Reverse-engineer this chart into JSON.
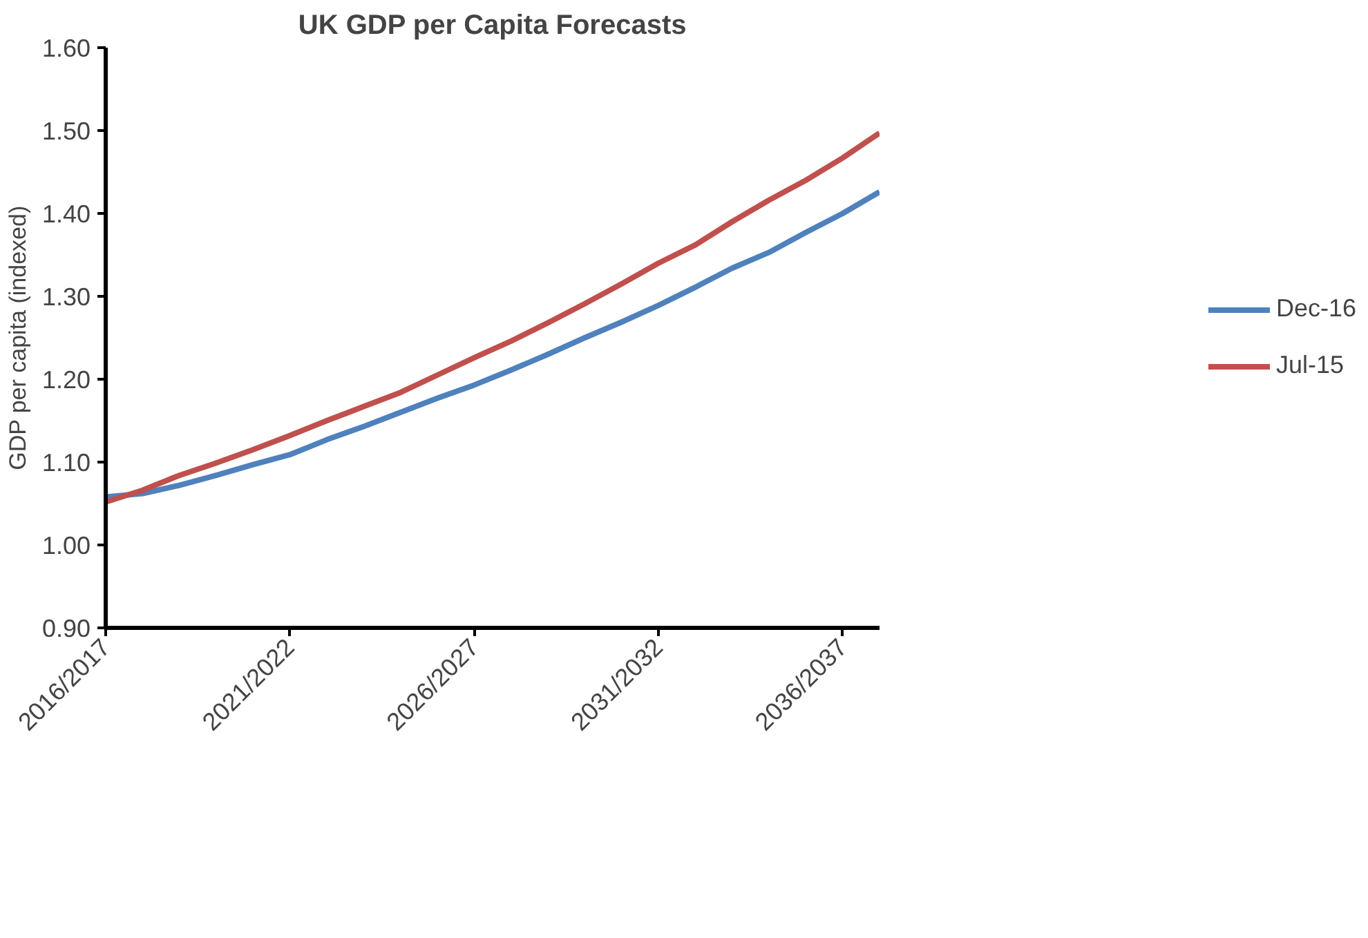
{
  "chart_data": {
    "type": "line",
    "title": "UK GDP per Capita Forecasts",
    "ylabel": "GDP per capita (indexed)",
    "categories": [
      "2016/2017",
      null,
      null,
      null,
      null,
      "2021/2022",
      null,
      null,
      null,
      null,
      "2026/2027",
      null,
      null,
      null,
      null,
      "2031/2032",
      null,
      null,
      null,
      null,
      "2036/2037",
      null
    ],
    "series": [
      {
        "name": "Dec-16",
        "color": "#4f81bd",
        "values": [
          1.058,
          1.062,
          1.072,
          1.084,
          1.097,
          1.109,
          1.127,
          1.143,
          1.16,
          1.177,
          1.193,
          1.211,
          1.23,
          1.25,
          1.269,
          1.289,
          1.311,
          1.334,
          1.353,
          1.377,
          1.4,
          1.426
        ]
      },
      {
        "name": "Jul-15",
        "color": "#c0504d",
        "values": [
          1.052,
          1.066,
          1.084,
          1.099,
          1.115,
          1.132,
          1.15,
          1.167,
          1.184,
          1.205,
          1.226,
          1.246,
          1.268,
          1.291,
          1.315,
          1.34,
          1.362,
          1.39,
          1.416,
          1.44,
          1.467,
          1.497
        ]
      }
    ],
    "ylim": [
      0.9,
      1.6
    ],
    "yticks": [
      {
        "value": 0.9,
        "label": "0.90"
      },
      {
        "value": 1.0,
        "label": "1.00"
      },
      {
        "value": 1.1,
        "label": "1.10"
      },
      {
        "value": 1.2,
        "label": "1.20"
      },
      {
        "value": 1.3,
        "label": "1.30"
      },
      {
        "value": 1.4,
        "label": "1.40"
      },
      {
        "value": 1.5,
        "label": "1.50"
      },
      {
        "value": 1.6,
        "label": "1.60"
      }
    ],
    "grid": false,
    "legend": "right",
    "marker": "none",
    "line_style": "solid"
  }
}
